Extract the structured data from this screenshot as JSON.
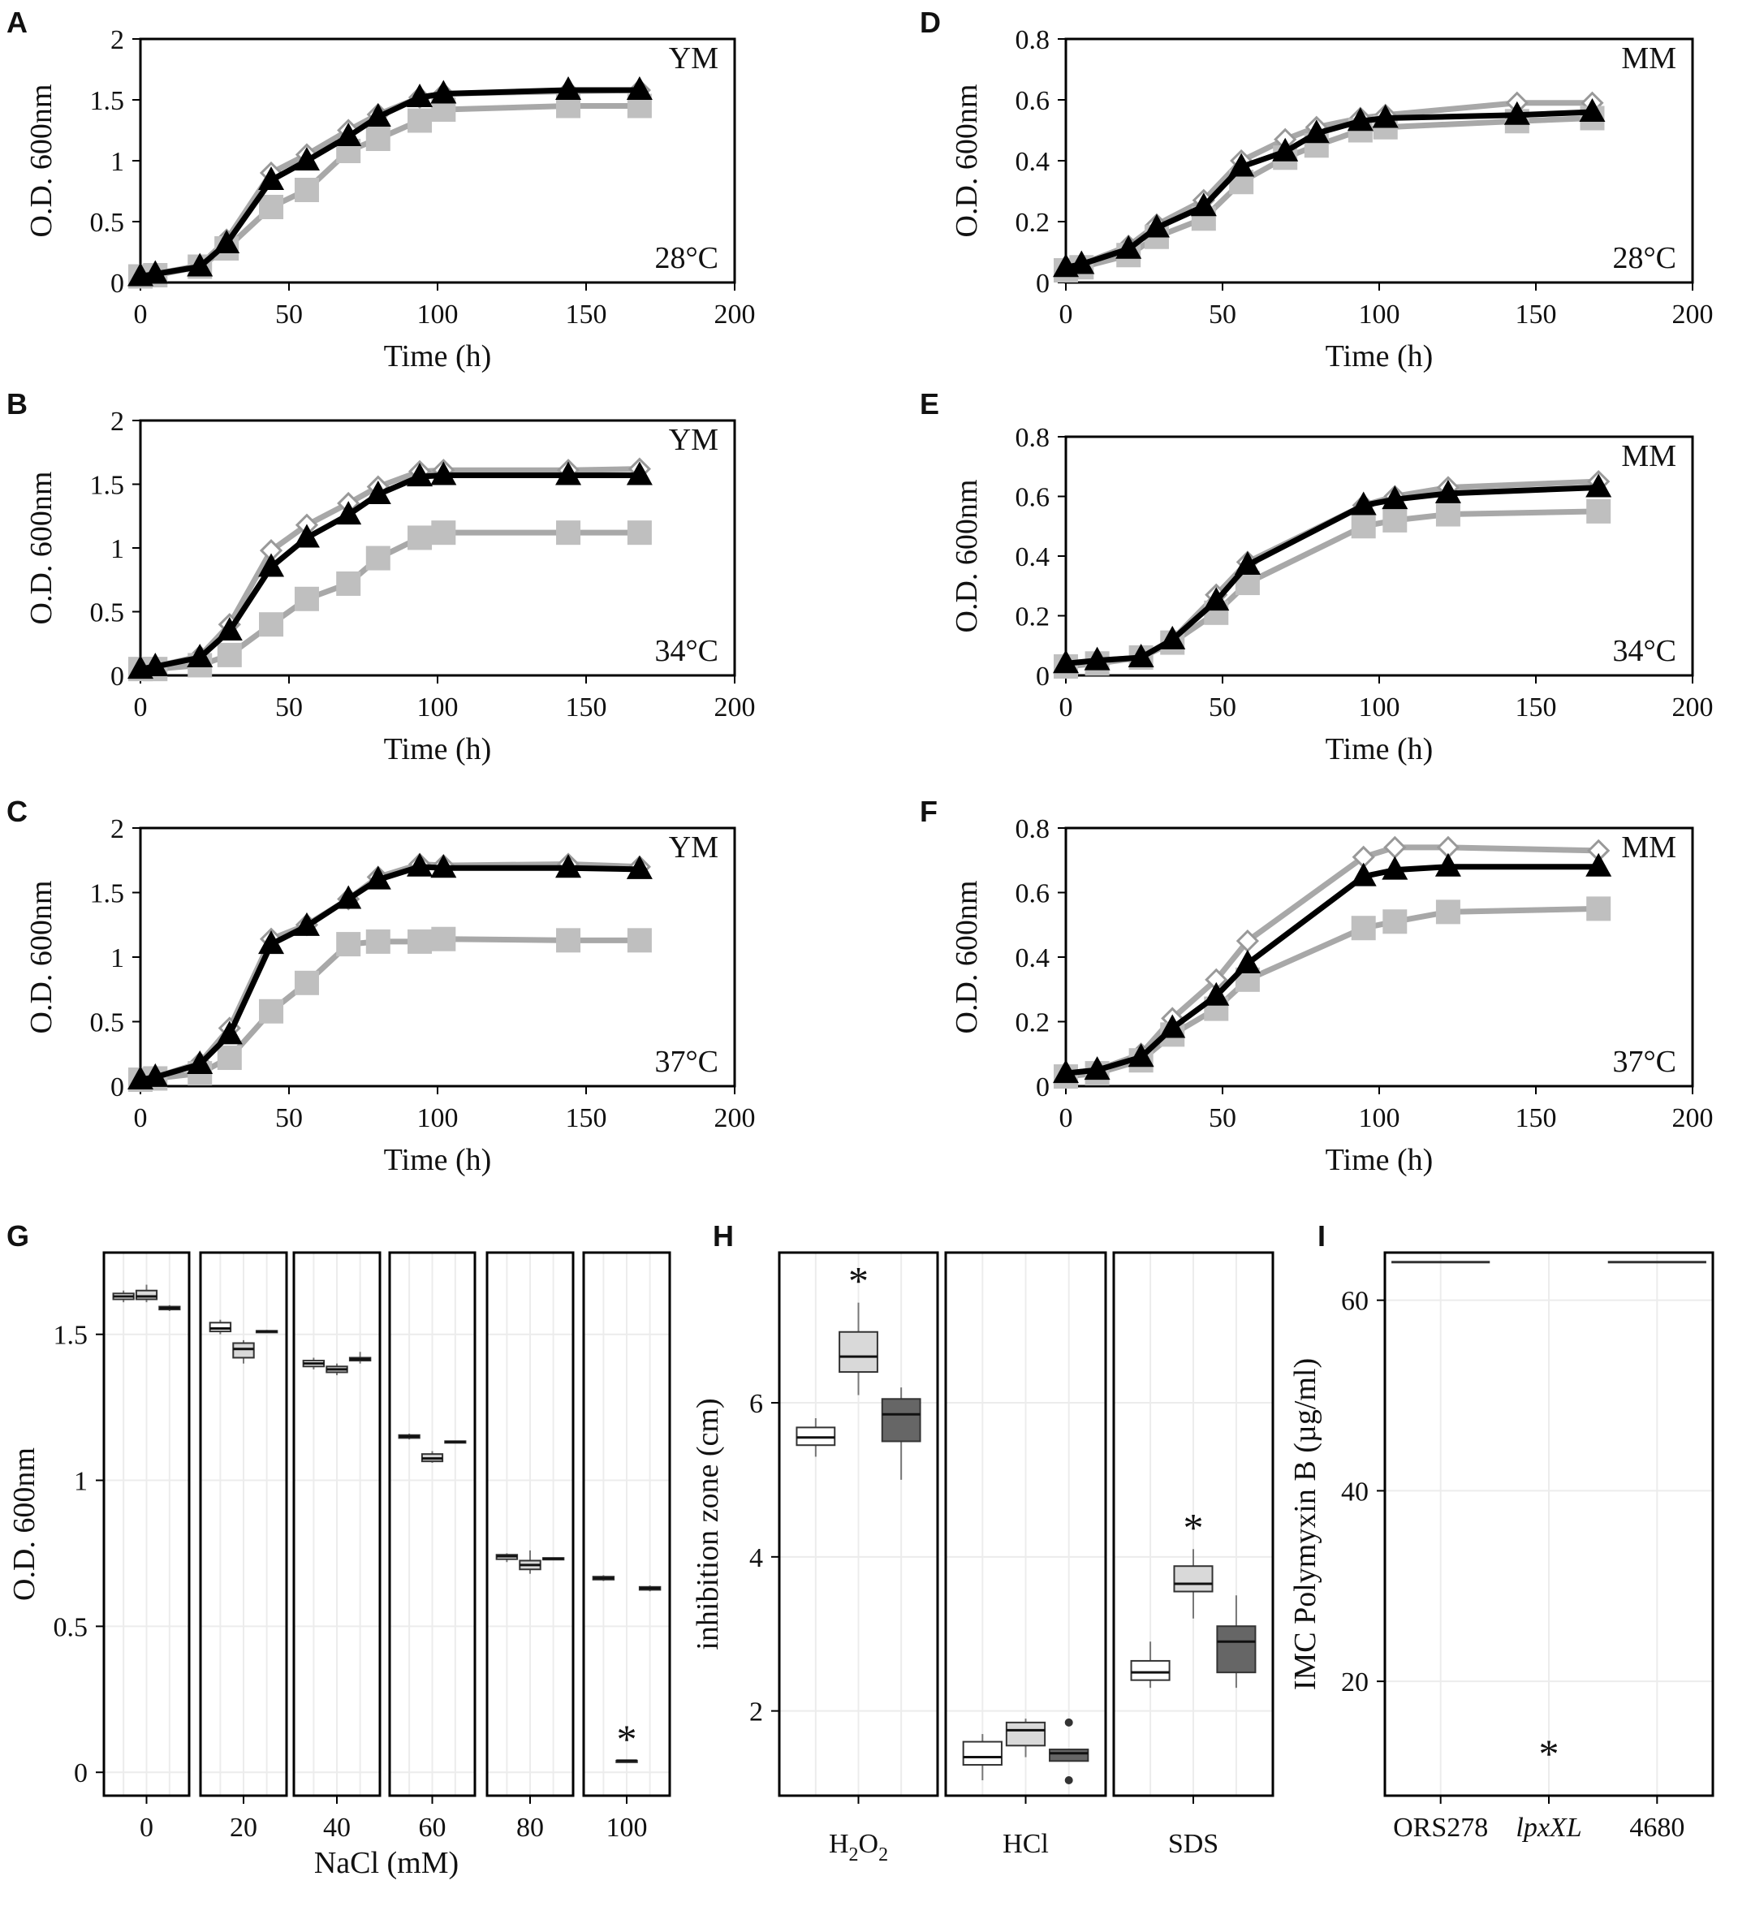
{
  "colors": {
    "ors278": "#ffffff",
    "lpxxl": "#bfbfbf",
    "c4680": "#000000",
    "lpxxl_line": "#a8a8a8",
    "box_light": "#d9d9d9",
    "box_dark": "#666666",
    "grid": "#ececec"
  },
  "chart_data": [
    {
      "id": "A",
      "type": "line",
      "letter": "A",
      "medium": "YM",
      "temp": "28°C",
      "xlabel": "Time (h)",
      "ylabel": "O.D. 600nm",
      "xlim": [
        0,
        200
      ],
      "ylim": [
        0,
        2
      ],
      "xticks": [
        "0",
        "50",
        "100",
        "150",
        "200"
      ],
      "yticks": [
        "0",
        "0.5",
        "1",
        "1.5",
        "2"
      ],
      "x": [
        0,
        5,
        20,
        29,
        44,
        56,
        70,
        80,
        94,
        102,
        144,
        168
      ],
      "series": [
        {
          "name": "ORS278",
          "marker": "diamond",
          "values": [
            0.05,
            0.07,
            0.14,
            0.35,
            0.9,
            1.05,
            1.25,
            1.38,
            1.52,
            1.55,
            1.57,
            1.58
          ]
        },
        {
          "name": "lpxXL",
          "marker": "square",
          "values": [
            0.05,
            0.06,
            0.13,
            0.28,
            0.62,
            0.76,
            1.08,
            1.18,
            1.33,
            1.42,
            1.45,
            1.45
          ]
        },
        {
          "name": "4680",
          "marker": "triangle",
          "values": [
            0.05,
            0.07,
            0.13,
            0.32,
            0.84,
            1.0,
            1.2,
            1.36,
            1.52,
            1.55,
            1.58,
            1.58
          ]
        }
      ]
    },
    {
      "id": "B",
      "type": "line",
      "letter": "B",
      "medium": "YM",
      "temp": "34°C",
      "xlabel": "Time (h)",
      "ylabel": "O.D. 600nm",
      "xlim": [
        0,
        200
      ],
      "ylim": [
        0,
        2
      ],
      "xticks": [
        "0",
        "50",
        "100",
        "150",
        "200"
      ],
      "yticks": [
        "0",
        "0.5",
        "1",
        "1.5",
        "2"
      ],
      "x": [
        0,
        5,
        20,
        30,
        44,
        56,
        70,
        80,
        94,
        102,
        144,
        168
      ],
      "series": [
        {
          "name": "ORS278",
          "marker": "diamond",
          "values": [
            0.05,
            0.07,
            0.15,
            0.4,
            0.98,
            1.18,
            1.35,
            1.48,
            1.6,
            1.61,
            1.61,
            1.62
          ]
        },
        {
          "name": "lpxXL",
          "marker": "square",
          "values": [
            0.05,
            0.05,
            0.08,
            0.16,
            0.4,
            0.6,
            0.72,
            0.92,
            1.08,
            1.12,
            1.12,
            1.12
          ]
        },
        {
          "name": "4680",
          "marker": "triangle",
          "values": [
            0.05,
            0.07,
            0.14,
            0.35,
            0.85,
            1.08,
            1.26,
            1.42,
            1.56,
            1.57,
            1.57,
            1.57
          ]
        }
      ]
    },
    {
      "id": "C",
      "type": "line",
      "letter": "C",
      "medium": "YM",
      "temp": "37°C",
      "xlabel": "Time (h)",
      "ylabel": "O.D. 600nm",
      "xlim": [
        0,
        200
      ],
      "ylim": [
        0,
        2
      ],
      "xticks": [
        "0",
        "50",
        "100",
        "150",
        "200"
      ],
      "yticks": [
        "0",
        "0.5",
        "1",
        "1.5",
        "2"
      ],
      "x": [
        0,
        5,
        20,
        30,
        44,
        56,
        70,
        80,
        94,
        102,
        144,
        168
      ],
      "series": [
        {
          "name": "ORS278",
          "marker": "diamond",
          "values": [
            0.05,
            0.07,
            0.18,
            0.45,
            1.14,
            1.25,
            1.45,
            1.62,
            1.72,
            1.71,
            1.72,
            1.7
          ]
        },
        {
          "name": "lpxXL",
          "marker": "square",
          "values": [
            0.05,
            0.06,
            0.1,
            0.22,
            0.58,
            0.8,
            1.1,
            1.12,
            1.12,
            1.14,
            1.13,
            1.13
          ]
        },
        {
          "name": "4680",
          "marker": "triangle",
          "values": [
            0.05,
            0.07,
            0.17,
            0.4,
            1.1,
            1.24,
            1.45,
            1.6,
            1.7,
            1.69,
            1.69,
            1.68
          ]
        }
      ]
    },
    {
      "id": "D",
      "type": "line",
      "letter": "D",
      "medium": "MM",
      "temp": "28°C",
      "xlabel": "Time (h)",
      "ylabel": "O.D. 600nm",
      "xlim": [
        0,
        200
      ],
      "ylim": [
        0,
        0.8
      ],
      "xticks": [
        "0",
        "50",
        "100",
        "150",
        "200"
      ],
      "yticks": [
        "0",
        "0.2",
        "0.4",
        "0.6",
        "0.8"
      ],
      "x": [
        0,
        5,
        20,
        29,
        44,
        56,
        70,
        80,
        94,
        102,
        144,
        168
      ],
      "series": [
        {
          "name": "ORS278",
          "marker": "diamond",
          "values": [
            0.05,
            0.06,
            0.12,
            0.19,
            0.27,
            0.4,
            0.47,
            0.51,
            0.54,
            0.55,
            0.59,
            0.59
          ]
        },
        {
          "name": "lpxXL",
          "marker": "square",
          "values": [
            0.04,
            0.05,
            0.09,
            0.15,
            0.21,
            0.33,
            0.41,
            0.45,
            0.5,
            0.51,
            0.53,
            0.54
          ]
        },
        {
          "name": "4680",
          "marker": "triangle",
          "values": [
            0.05,
            0.06,
            0.11,
            0.18,
            0.25,
            0.38,
            0.43,
            0.49,
            0.53,
            0.54,
            0.55,
            0.56
          ]
        }
      ]
    },
    {
      "id": "E",
      "type": "line",
      "letter": "E",
      "medium": "MM",
      "temp": "34°C",
      "xlabel": "Time (h)",
      "ylabel": "O.D. 600nm",
      "xlim": [
        0,
        200
      ],
      "ylim": [
        0,
        0.8
      ],
      "xticks": [
        "0",
        "50",
        "100",
        "150",
        "200"
      ],
      "yticks": [
        "0",
        "0.2",
        "0.4",
        "0.6",
        "0.8"
      ],
      "x": [
        0,
        10,
        24,
        34,
        48,
        58,
        95,
        105,
        122,
        170
      ],
      "series": [
        {
          "name": "ORS278",
          "marker": "diamond",
          "values": [
            0.04,
            0.05,
            0.06,
            0.12,
            0.27,
            0.38,
            0.57,
            0.6,
            0.63,
            0.65
          ]
        },
        {
          "name": "lpxXL",
          "marker": "square",
          "values": [
            0.03,
            0.04,
            0.06,
            0.11,
            0.21,
            0.31,
            0.5,
            0.52,
            0.54,
            0.55
          ]
        },
        {
          "name": "4680",
          "marker": "triangle",
          "values": [
            0.04,
            0.05,
            0.06,
            0.12,
            0.25,
            0.37,
            0.57,
            0.59,
            0.61,
            0.63
          ]
        }
      ]
    },
    {
      "id": "F",
      "type": "line",
      "letter": "F",
      "medium": "MM",
      "temp": "37°C",
      "xlabel": "Time (h)",
      "ylabel": "O.D. 600nm",
      "xlim": [
        0,
        200
      ],
      "ylim": [
        0,
        0.8
      ],
      "xticks": [
        "0",
        "50",
        "100",
        "150",
        "200"
      ],
      "yticks": [
        "0",
        "0.2",
        "0.4",
        "0.6",
        "0.8"
      ],
      "x": [
        0,
        10,
        24,
        34,
        48,
        58,
        95,
        105,
        122,
        170
      ],
      "series": [
        {
          "name": "ORS278",
          "marker": "diamond",
          "values": [
            0.04,
            0.05,
            0.1,
            0.21,
            0.33,
            0.45,
            0.71,
            0.74,
            0.74,
            0.73
          ]
        },
        {
          "name": "lpxXL",
          "marker": "square",
          "values": [
            0.03,
            0.04,
            0.08,
            0.16,
            0.24,
            0.33,
            0.49,
            0.51,
            0.54,
            0.55
          ]
        },
        {
          "name": "4680",
          "marker": "triangle",
          "values": [
            0.04,
            0.05,
            0.09,
            0.18,
            0.28,
            0.38,
            0.65,
            0.67,
            0.68,
            0.68
          ]
        }
      ]
    },
    {
      "id": "G",
      "type": "box",
      "letter": "G",
      "xlabel": "NaCl (mM)",
      "ylabel": "O.D. 600nm",
      "ylim": [
        -0.08,
        1.78
      ],
      "yticks": [
        0,
        0.5,
        1,
        1.5
      ],
      "ytick_labels": [
        "0",
        "0.5",
        "1",
        "1.5"
      ],
      "groups": [
        "0",
        "20",
        "40",
        "60",
        "80",
        "100"
      ],
      "strains": [
        "ORS278",
        "lpxXL",
        "4680"
      ],
      "boxes": [
        [
          [
            1.61,
            1.62,
            1.63,
            1.64,
            1.65
          ],
          [
            1.61,
            1.62,
            1.63,
            1.65,
            1.67
          ],
          [
            1.58,
            1.585,
            1.59,
            1.595,
            1.6
          ]
        ],
        [
          [
            1.5,
            1.51,
            1.52,
            1.54,
            1.55
          ],
          [
            1.4,
            1.42,
            1.45,
            1.47,
            1.48
          ],
          [
            1.505,
            1.508,
            1.51,
            1.512,
            1.515
          ]
        ],
        [
          [
            1.38,
            1.39,
            1.4,
            1.41,
            1.42
          ],
          [
            1.36,
            1.37,
            1.38,
            1.39,
            1.4
          ],
          [
            1.4,
            1.41,
            1.415,
            1.42,
            1.44
          ]
        ],
        [
          [
            1.14,
            1.145,
            1.15,
            1.155,
            1.16
          ],
          [
            1.06,
            1.065,
            1.075,
            1.09,
            1.1
          ],
          [
            1.128,
            1.13,
            1.132,
            1.134,
            1.136
          ]
        ],
        [
          [
            0.72,
            0.73,
            0.74,
            0.745,
            0.75
          ],
          [
            0.68,
            0.695,
            0.71,
            0.725,
            0.76
          ],
          [
            0.728,
            0.73,
            0.732,
            0.734,
            0.736
          ]
        ],
        [
          [
            0.655,
            0.66,
            0.665,
            0.67,
            0.675
          ],
          [
            0.04,
            0.04,
            0.04,
            0.04,
            0.04
          ],
          [
            0.62,
            0.625,
            0.63,
            0.635,
            0.64
          ]
        ]
      ],
      "significance": [
        {
          "group": 5,
          "strain": 1,
          "label": "*"
        }
      ]
    },
    {
      "id": "H",
      "type": "box",
      "letter": "H",
      "ylabel": "inhibition zone (cm)",
      "ylim": [
        0.9,
        7.95
      ],
      "yticks": [
        2,
        4,
        6
      ],
      "ytick_labels": [
        "2",
        "4",
        "6"
      ],
      "groups": [
        "H2O2",
        "HCl",
        "SDS"
      ],
      "group_labels": [
        {
          "main": "H",
          "sub": "2",
          "main2": "O",
          "sub2": "2"
        },
        {
          "main": "HCl"
        },
        {
          "main": "SDS"
        }
      ],
      "strains": [
        "ORS278",
        "lpxXL",
        "4680"
      ],
      "boxes": [
        [
          [
            5.3,
            5.45,
            5.55,
            5.68,
            5.8
          ],
          [
            6.1,
            6.4,
            6.6,
            6.92,
            7.3
          ],
          [
            5.0,
            5.5,
            5.85,
            6.05,
            6.2
          ]
        ],
        [
          [
            1.1,
            1.3,
            1.4,
            1.6,
            1.7
          ],
          [
            1.4,
            1.55,
            1.75,
            1.85,
            1.9
          ],
          [
            1.35,
            1.35,
            1.45,
            1.5,
            1.5
          ]
        ],
        [
          [
            2.3,
            2.4,
            2.5,
            2.65,
            2.9
          ],
          [
            3.2,
            3.55,
            3.65,
            3.88,
            4.1
          ],
          [
            2.3,
            2.5,
            2.9,
            3.1,
            3.5
          ]
        ]
      ],
      "outliers": [
        {
          "group": 1,
          "strain": 2,
          "values": [
            1.85,
            1.1
          ]
        }
      ],
      "significance": [
        {
          "group": 0,
          "strain": 1,
          "label": "*"
        },
        {
          "group": 2,
          "strain": 1,
          "label": "*"
        }
      ]
    },
    {
      "id": "I",
      "type": "box",
      "letter": "I",
      "ylabel": "IMC Polymyxin B (µg/ml)",
      "ylim": [
        8,
        65
      ],
      "yticks": [
        20,
        40,
        60
      ],
      "ytick_labels": [
        "20",
        "40",
        "60"
      ],
      "categories": [
        "ORS278",
        "lpxXL",
        "4680"
      ],
      "values": [
        64,
        8,
        64
      ],
      "significance": [
        {
          "index": 1,
          "label": "*"
        }
      ]
    }
  ]
}
